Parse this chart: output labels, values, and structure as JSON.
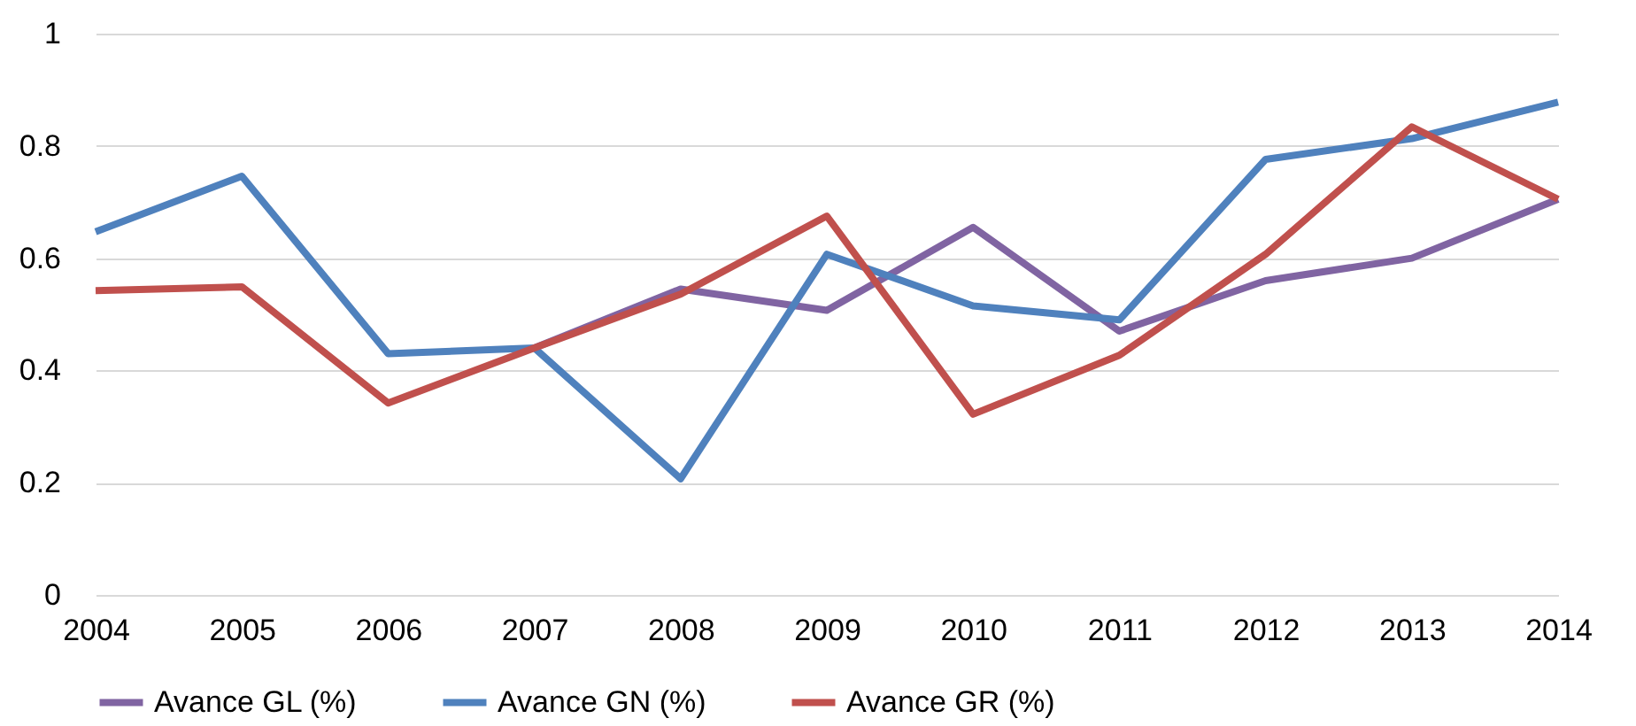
{
  "chart_data": {
    "type": "line",
    "categories": [
      "2004",
      "2005",
      "2006",
      "2007",
      "2008",
      "2009",
      "2010",
      "2011",
      "2012",
      "2013",
      "2014"
    ],
    "series": [
      {
        "name": "Avance GL (%)",
        "color": "#8064a2",
        "values": [
          null,
          null,
          null,
          0.44,
          0.545,
          0.507,
          0.655,
          0.47,
          0.56,
          0.6,
          0.705
        ]
      },
      {
        "name": "Avance GN (%)",
        "color": "#4f81bd",
        "values": [
          0.647,
          0.746,
          0.43,
          0.44,
          0.207,
          0.607,
          0.515,
          0.49,
          0.776,
          0.813,
          0.878
        ]
      },
      {
        "name": "Avance GR (%)",
        "color": "#c0504d",
        "values": [
          0.542,
          0.549,
          0.342,
          0.44,
          0.536,
          0.675,
          0.322,
          0.427,
          0.607,
          0.834,
          0.705
        ]
      }
    ],
    "ylim": [
      0,
      1
    ],
    "yticks": [
      0,
      0.2,
      0.4,
      0.6,
      0.8,
      1
    ],
    "grid": "y",
    "legend": "bottom",
    "marker": "none",
    "line_style": "solid"
  }
}
